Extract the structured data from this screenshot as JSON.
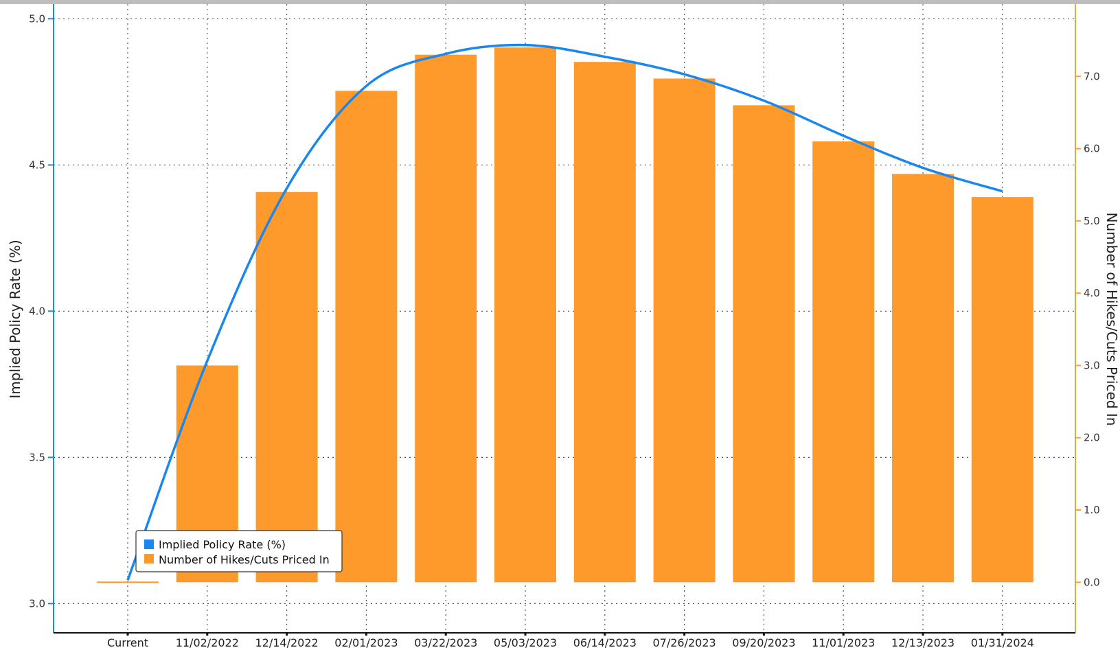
{
  "colors": {
    "rate_line": "#1a87ee",
    "bars": "#fd9a2b",
    "left_axis": "#1a87ee",
    "right_axis": "#f4a23b",
    "grid": "#555555",
    "top_bar": "#bdbdbd"
  },
  "chart_data": {
    "type": "bar",
    "categories": [
      "Current",
      "11/02/2022",
      "12/14/2022",
      "02/01/2023",
      "03/22/2023",
      "05/03/2023",
      "06/14/2023",
      "07/26/2023",
      "09/20/2023",
      "11/01/2023",
      "12/13/2023",
      "01/31/2024"
    ],
    "series": [
      {
        "name": "Implied Policy Rate (%)",
        "type": "line",
        "axis": "left",
        "values": [
          3.08,
          3.83,
          4.42,
          4.77,
          4.88,
          4.91,
          4.87,
          4.81,
          4.72,
          4.6,
          4.49,
          4.41
        ]
      },
      {
        "name": "Number of Hikes/Cuts Priced In",
        "type": "bar",
        "axis": "right",
        "values": [
          0.0,
          3.0,
          5.4,
          6.8,
          7.3,
          7.4,
          7.2,
          6.97,
          6.6,
          6.1,
          5.65,
          5.33
        ]
      }
    ],
    "ylabel": "Implied Policy Rate (%)",
    "y2label": "Number of Hikes/Cuts Priced In",
    "ylim": [
      2.9,
      5.05
    ],
    "y2lim": [
      -0.7,
      8.0
    ],
    "yticks": [
      3.0,
      3.5,
      4.0,
      4.5,
      5.0
    ],
    "y2ticks": [
      0.0,
      1.0,
      2.0,
      3.0,
      4.0,
      5.0,
      6.0,
      7.0
    ],
    "grid": true,
    "legend": "bottom-left"
  }
}
